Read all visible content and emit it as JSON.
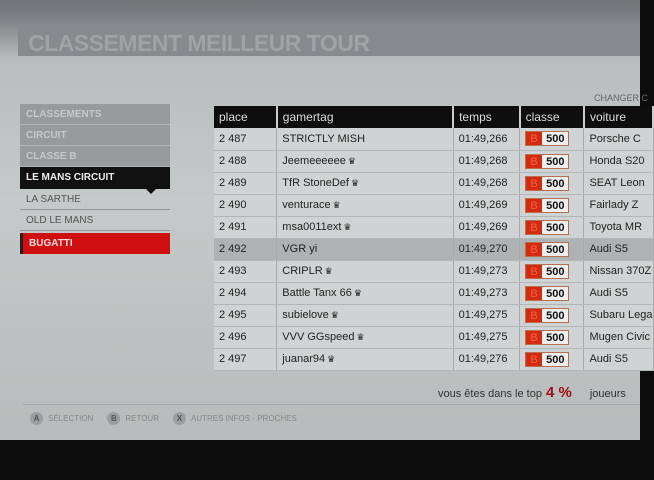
{
  "title": "CLASSEMENT MEILLEUR TOUR",
  "changer_label": "CHANGER C",
  "sidebar": {
    "items": [
      {
        "label": "CLASSEMENTS",
        "style": "g"
      },
      {
        "label": "CIRCUIT",
        "style": "g"
      },
      {
        "label": "CLASSE B",
        "style": "g"
      },
      {
        "label": "LE MANS CIRCUIT",
        "style": "sel"
      },
      {
        "label": "LA SARTHE",
        "style": "p"
      },
      {
        "label": "OLD LE MANS",
        "style": "p"
      },
      {
        "label": "BUGATTI",
        "style": "red"
      }
    ]
  },
  "table": {
    "headers": [
      "place",
      "gamertag",
      "temps",
      "classe",
      "voiture"
    ],
    "rows": [
      {
        "place": "2 487",
        "gamertag": "STRICTLY MISH",
        "crown": false,
        "temps": "01:49,266",
        "class": "B",
        "pi": "500",
        "voiture": "Porsche C"
      },
      {
        "place": "2 488",
        "gamertag": "Jeemeeeeee",
        "crown": true,
        "temps": "01:49,268",
        "class": "B",
        "pi": "500",
        "voiture": "Honda S20"
      },
      {
        "place": "2 489",
        "gamertag": "TfR StoneDef",
        "crown": true,
        "temps": "01:49,268",
        "class": "B",
        "pi": "500",
        "voiture": "SEAT Leon"
      },
      {
        "place": "2 490",
        "gamertag": "venturace",
        "crown": true,
        "temps": "01:49,269",
        "class": "B",
        "pi": "500",
        "voiture": "Fairlady Z"
      },
      {
        "place": "2 491",
        "gamertag": "msa0011ext",
        "crown": true,
        "temps": "01:49,269",
        "class": "B",
        "pi": "500",
        "voiture": "Toyota MR"
      },
      {
        "place": "2 492",
        "gamertag": "VGR yi",
        "crown": false,
        "temps": "01:49,270",
        "class": "B",
        "pi": "500",
        "voiture": "Audi S5",
        "highlighted": true
      },
      {
        "place": "2 493",
        "gamertag": "CRIPLR",
        "crown": true,
        "temps": "01:49,273",
        "class": "B",
        "pi": "500",
        "voiture": "Nissan 370Z"
      },
      {
        "place": "2 494",
        "gamertag": "Battle Tanx 66",
        "crown": true,
        "temps": "01:49,273",
        "class": "B",
        "pi": "500",
        "voiture": "Audi S5"
      },
      {
        "place": "2 495",
        "gamertag": "subielove",
        "crown": true,
        "temps": "01:49,275",
        "class": "B",
        "pi": "500",
        "voiture": "Subaru Lega"
      },
      {
        "place": "2 496",
        "gamertag": "VVV GGspeed",
        "crown": true,
        "temps": "01:49,275",
        "class": "B",
        "pi": "500",
        "voiture": "Mugen Civic"
      },
      {
        "place": "2 497",
        "gamertag": "juanar94",
        "crown": true,
        "temps": "01:49,276",
        "class": "B",
        "pi": "500",
        "voiture": "Audi S5"
      }
    ]
  },
  "top": {
    "text": "vous êtes dans le top",
    "value": "4 %",
    "suffix": "joueurs"
  },
  "footer": [
    {
      "button": "A",
      "label": "SÉLECTION"
    },
    {
      "button": "B",
      "label": "RETOUR"
    },
    {
      "button": "X",
      "label": "AUTRES INFOS - PROCHES"
    }
  ],
  "colors": {
    "accent_red": "#d01010",
    "selected": "#111111",
    "class_badge": "#d42a10"
  }
}
